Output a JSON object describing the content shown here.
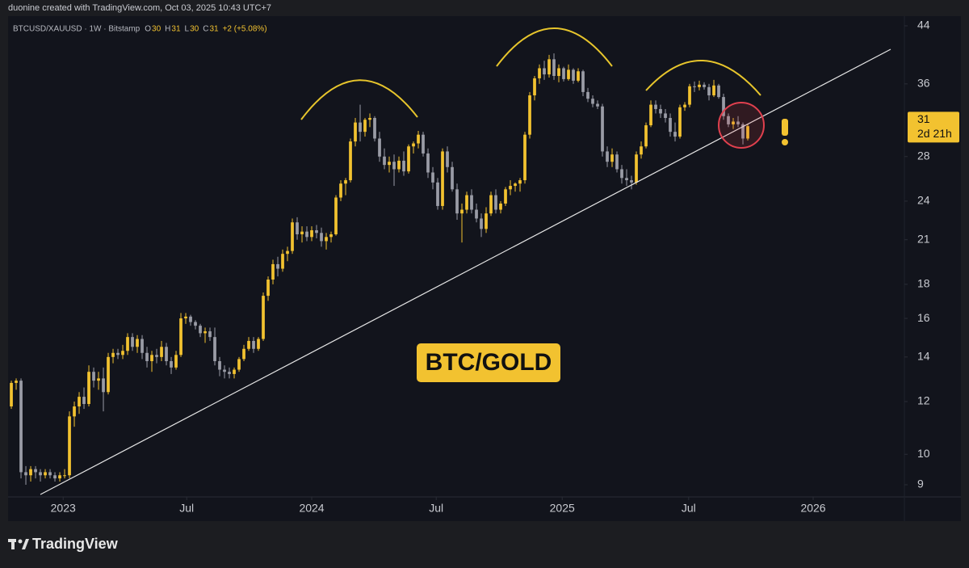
{
  "header": {
    "credit": "duonine created with TradingView.com, Oct 03, 2025 10:43 UTC+7"
  },
  "legend": {
    "symbol": "BTCUSD/XAUUSD · 1W · Bitstamp",
    "items": [
      {
        "key": "O",
        "value": 30
      },
      {
        "key": "H",
        "value": 31
      },
      {
        "key": "L",
        "value": 30
      },
      {
        "key": "C",
        "value": 31
      }
    ],
    "change": "+2 (+5.08%)"
  },
  "chart_data": {
    "type": "candlestick",
    "log_scale": true,
    "up_color": "#f2c230",
    "down_color": "#9a9ca6",
    "ylim": [
      8.63,
      45.5
    ],
    "yticks": [
      9,
      10,
      12,
      14,
      16,
      18,
      21,
      24,
      28,
      36,
      44
    ],
    "xlim": [
      -0.67,
      184.33
    ],
    "xticks": [
      {
        "value": 10.7,
        "label": "2023"
      },
      {
        "value": 36.2,
        "label": "Jul"
      },
      {
        "value": 62,
        "label": "2024"
      },
      {
        "value": 87.7,
        "label": "Jul"
      },
      {
        "value": 113.7,
        "label": "2025"
      },
      {
        "value": 139.8,
        "label": "Jul"
      },
      {
        "value": 165.5,
        "label": "2026"
      }
    ],
    "last_price": 31,
    "countdown": "2d 21h",
    "annotation": "BTC/GOLD",
    "candles": [
      [
        11.8,
        12.9,
        11.7,
        12.8
      ],
      [
        12.8,
        13.0,
        12.5,
        12.9
      ],
      [
        12.9,
        13.0,
        9.2,
        9.4
      ],
      [
        9.4,
        9.6,
        9.0,
        9.3
      ],
      [
        9.3,
        9.6,
        9.1,
        9.5
      ],
      [
        9.5,
        9.6,
        9.2,
        9.4
      ],
      [
        9.4,
        9.5,
        9.1,
        9.3
      ],
      [
        9.3,
        9.5,
        9.2,
        9.4
      ],
      [
        9.4,
        9.5,
        9.2,
        9.3
      ],
      [
        9.3,
        9.4,
        9.1,
        9.2
      ],
      [
        9.2,
        9.4,
        9.1,
        9.3
      ],
      [
        9.3,
        9.5,
        9.2,
        9.3
      ],
      [
        9.3,
        11.6,
        9.2,
        11.4
      ],
      [
        11.4,
        12.0,
        11.0,
        11.8
      ],
      [
        11.8,
        12.4,
        11.5,
        12.2
      ],
      [
        12.2,
        12.6,
        11.7,
        11.9
      ],
      [
        11.9,
        13.6,
        11.8,
        13.3
      ],
      [
        13.3,
        13.5,
        12.6,
        12.9
      ],
      [
        12.9,
        13.3,
        12.5,
        13.0
      ],
      [
        13.0,
        13.5,
        11.6,
        12.4
      ],
      [
        12.4,
        14.2,
        12.3,
        14.0
      ],
      [
        14.0,
        14.4,
        13.7,
        14.2
      ],
      [
        14.2,
        14.4,
        13.9,
        14.1
      ],
      [
        14.1,
        14.6,
        13.9,
        14.3
      ],
      [
        14.3,
        15.2,
        14.1,
        15.0
      ],
      [
        15.0,
        15.2,
        14.3,
        14.5
      ],
      [
        14.5,
        15.1,
        14.2,
        14.9
      ],
      [
        14.9,
        15.1,
        13.9,
        14.2
      ],
      [
        14.2,
        14.5,
        13.5,
        13.8
      ],
      [
        13.8,
        14.3,
        13.3,
        14.1
      ],
      [
        14.1,
        14.4,
        13.7,
        14.0
      ],
      [
        14.0,
        14.8,
        13.8,
        14.5
      ],
      [
        14.5,
        14.7,
        13.6,
        13.8
      ],
      [
        13.8,
        14.0,
        13.2,
        13.5
      ],
      [
        13.5,
        14.3,
        13.4,
        14.1
      ],
      [
        14.1,
        16.3,
        14.0,
        16.0
      ],
      [
        16.0,
        16.3,
        15.7,
        16.1
      ],
      [
        16.1,
        16.2,
        15.6,
        15.8
      ],
      [
        15.8,
        15.9,
        15.4,
        15.6
      ],
      [
        15.6,
        15.7,
        15.0,
        15.2
      ],
      [
        15.2,
        15.5,
        14.7,
        15.3
      ],
      [
        15.3,
        15.5,
        14.8,
        15.0
      ],
      [
        15.0,
        15.5,
        13.6,
        13.8
      ],
      [
        13.8,
        14.0,
        13.1,
        13.4
      ],
      [
        13.4,
        13.6,
        13.0,
        13.3
      ],
      [
        13.3,
        13.5,
        13.0,
        13.2
      ],
      [
        13.2,
        13.5,
        13.0,
        13.4
      ],
      [
        13.4,
        14.0,
        13.3,
        13.9
      ],
      [
        13.9,
        14.6,
        13.8,
        14.4
      ],
      [
        14.4,
        15.0,
        14.3,
        14.8
      ],
      [
        14.8,
        15.0,
        14.2,
        14.4
      ],
      [
        14.4,
        15.0,
        14.3,
        14.9
      ],
      [
        14.9,
        17.5,
        14.8,
        17.3
      ],
      [
        17.3,
        18.5,
        17.0,
        18.3
      ],
      [
        18.3,
        19.6,
        18.0,
        19.3
      ],
      [
        19.3,
        19.8,
        18.5,
        19.0
      ],
      [
        19.0,
        20.3,
        18.8,
        20.0
      ],
      [
        20.0,
        20.5,
        19.5,
        20.2
      ],
      [
        20.2,
        22.6,
        20.0,
        22.3
      ],
      [
        22.3,
        22.7,
        21.0,
        21.4
      ],
      [
        21.4,
        22.0,
        20.8,
        21.6
      ],
      [
        21.6,
        22.0,
        20.9,
        21.2
      ],
      [
        21.2,
        22.0,
        20.9,
        21.7
      ],
      [
        21.7,
        22.1,
        21.1,
        21.5
      ],
      [
        21.5,
        21.9,
        20.5,
        20.9
      ],
      [
        20.9,
        21.5,
        20.3,
        21.2
      ],
      [
        21.2,
        21.6,
        20.8,
        21.4
      ],
      [
        21.4,
        24.5,
        21.3,
        24.3
      ],
      [
        24.3,
        25.8,
        24.0,
        25.5
      ],
      [
        25.5,
        26.0,
        24.5,
        25.8
      ],
      [
        25.8,
        29.8,
        25.6,
        29.5
      ],
      [
        29.5,
        32.0,
        29.0,
        31.5
      ],
      [
        31.5,
        33.5,
        29.5,
        30.5
      ],
      [
        30.5,
        32.0,
        30.0,
        31.8
      ],
      [
        31.8,
        32.5,
        31.0,
        32.0
      ],
      [
        32.0,
        32.2,
        29.5,
        29.8
      ],
      [
        29.8,
        30.5,
        27.5,
        28.0
      ],
      [
        28.0,
        28.8,
        26.8,
        27.2
      ],
      [
        27.2,
        28.0,
        26.5,
        27.5
      ],
      [
        27.5,
        28.2,
        25.3,
        26.8
      ],
      [
        26.8,
        28.0,
        26.5,
        27.6
      ],
      [
        27.6,
        28.5,
        26.2,
        26.6
      ],
      [
        26.6,
        29.2,
        26.4,
        29.0
      ],
      [
        29.0,
        29.5,
        28.3,
        29.3
      ],
      [
        29.3,
        30.6,
        28.8,
        30.2
      ],
      [
        30.2,
        30.5,
        28.0,
        28.3
      ],
      [
        28.3,
        28.8,
        26.0,
        26.5
      ],
      [
        26.5,
        27.0,
        25.0,
        25.6
      ],
      [
        25.6,
        26.0,
        23.3,
        23.6
      ],
      [
        23.6,
        28.8,
        23.3,
        28.5
      ],
      [
        28.5,
        29.0,
        26.5,
        27.0
      ],
      [
        27.0,
        27.5,
        24.8,
        25.0
      ],
      [
        25.0,
        25.5,
        22.5,
        23.0
      ],
      [
        23.0,
        23.8,
        20.8,
        23.3
      ],
      [
        23.3,
        24.8,
        23.0,
        24.5
      ],
      [
        24.5,
        25.0,
        23.0,
        23.3
      ],
      [
        23.3,
        23.8,
        22.3,
        22.6
      ],
      [
        22.6,
        23.0,
        21.2,
        21.8
      ],
      [
        21.8,
        23.5,
        21.5,
        23.0
      ],
      [
        23.0,
        24.8,
        22.8,
        24.5
      ],
      [
        24.5,
        25.0,
        23.0,
        23.3
      ],
      [
        23.3,
        24.0,
        23.0,
        23.8
      ],
      [
        23.8,
        25.2,
        23.6,
        25.0
      ],
      [
        25.0,
        25.8,
        24.5,
        25.3
      ],
      [
        25.3,
        25.6,
        24.8,
        25.5
      ],
      [
        25.5,
        26.0,
        24.8,
        25.8
      ],
      [
        25.8,
        30.5,
        25.5,
        30.2
      ],
      [
        30.2,
        35.0,
        29.8,
        34.6
      ],
      [
        34.6,
        37.0,
        34.0,
        36.7
      ],
      [
        36.7,
        38.5,
        36.0,
        38.0
      ],
      [
        38.0,
        39.0,
        36.5,
        37.2
      ],
      [
        37.2,
        39.8,
        36.8,
        39.2
      ],
      [
        39.2,
        40.0,
        36.5,
        37.0
      ],
      [
        37.0,
        38.5,
        36.2,
        38.0
      ],
      [
        38.0,
        38.2,
        36.3,
        36.6
      ],
      [
        36.6,
        38.5,
        36.4,
        37.8
      ],
      [
        37.8,
        38.0,
        36.0,
        36.4
      ],
      [
        36.4,
        38.0,
        36.2,
        37.6
      ],
      [
        37.6,
        37.8,
        34.5,
        35.0
      ],
      [
        35.0,
        35.5,
        33.8,
        34.2
      ],
      [
        34.2,
        34.6,
        33.2,
        33.6
      ],
      [
        33.6,
        34.0,
        33.0,
        33.3
      ],
      [
        33.3,
        33.6,
        28.0,
        28.5
      ],
      [
        28.5,
        29.0,
        27.0,
        27.5
      ],
      [
        27.5,
        28.8,
        27.0,
        28.2
      ],
      [
        28.2,
        28.5,
        26.5,
        26.8
      ],
      [
        26.8,
        27.2,
        25.5,
        26.0
      ],
      [
        26.0,
        26.8,
        25.3,
        25.8
      ],
      [
        25.8,
        26.2,
        25.0,
        25.6
      ],
      [
        25.6,
        28.5,
        25.4,
        28.2
      ],
      [
        28.2,
        29.5,
        27.8,
        29.0
      ],
      [
        29.0,
        31.5,
        28.8,
        31.2
      ],
      [
        31.2,
        34.0,
        31.0,
        33.5
      ],
      [
        33.5,
        34.0,
        32.5,
        33.0
      ],
      [
        33.0,
        33.5,
        32.0,
        32.5
      ],
      [
        32.5,
        33.0,
        31.5,
        32.0
      ],
      [
        32.0,
        32.5,
        30.0,
        30.5
      ],
      [
        30.5,
        31.5,
        29.5,
        30.0
      ],
      [
        30.0,
        33.5,
        29.8,
        33.2
      ],
      [
        33.2,
        33.8,
        32.8,
        33.5
      ],
      [
        33.5,
        36.0,
        33.2,
        35.7
      ],
      [
        35.7,
        36.3,
        35.0,
        35.6
      ],
      [
        35.6,
        36.4,
        35.2,
        35.9
      ],
      [
        35.9,
        36.2,
        35.3,
        35.6
      ],
      [
        35.6,
        36.0,
        34.0,
        34.6
      ],
      [
        34.6,
        36.5,
        34.4,
        35.8
      ],
      [
        35.8,
        36.0,
        34.2,
        34.4
      ],
      [
        34.4,
        34.8,
        31.8,
        32.2
      ],
      [
        32.2,
        32.5,
        31.0,
        31.3
      ],
      [
        31.3,
        32.0,
        30.8,
        31.6
      ],
      [
        31.6,
        32.2,
        31.0,
        31.3
      ],
      [
        31.3,
        31.5,
        29.2,
        29.8
      ],
      [
        29.8,
        31.3,
        29.6,
        31.1
      ]
    ]
  },
  "footer": {
    "brand": "TradingView"
  }
}
